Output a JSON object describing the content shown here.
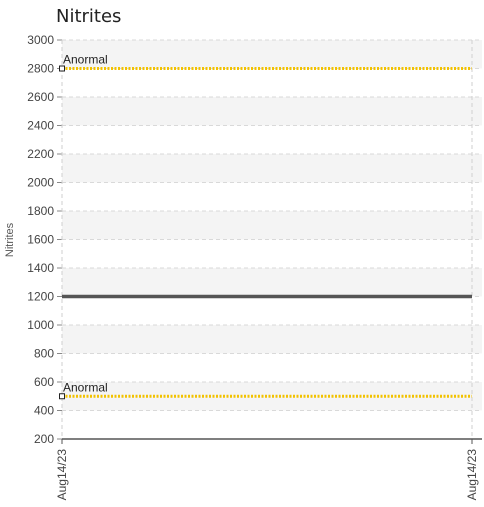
{
  "chart_data": {
    "type": "line",
    "title": "Nitrites",
    "ylabel": "Nitrites",
    "xlabel": "",
    "ylim": [
      200,
      3000
    ],
    "yticks": [
      200,
      400,
      600,
      800,
      1000,
      1200,
      1400,
      1600,
      1800,
      2000,
      2200,
      2400,
      2600,
      2800,
      3000
    ],
    "x": [
      "Aug14/23",
      "Aug14/23"
    ],
    "series": [
      {
        "values": [
          1200,
          1200
        ],
        "color": "#555555"
      }
    ],
    "reference_lines": [
      {
        "label": "Anormal",
        "value": 2800,
        "color": "#f2c200"
      },
      {
        "label": "Anormal",
        "value": 500,
        "color": "#f2c200"
      }
    ],
    "grid": true,
    "alternate_band_color": "#f4f4f4"
  }
}
